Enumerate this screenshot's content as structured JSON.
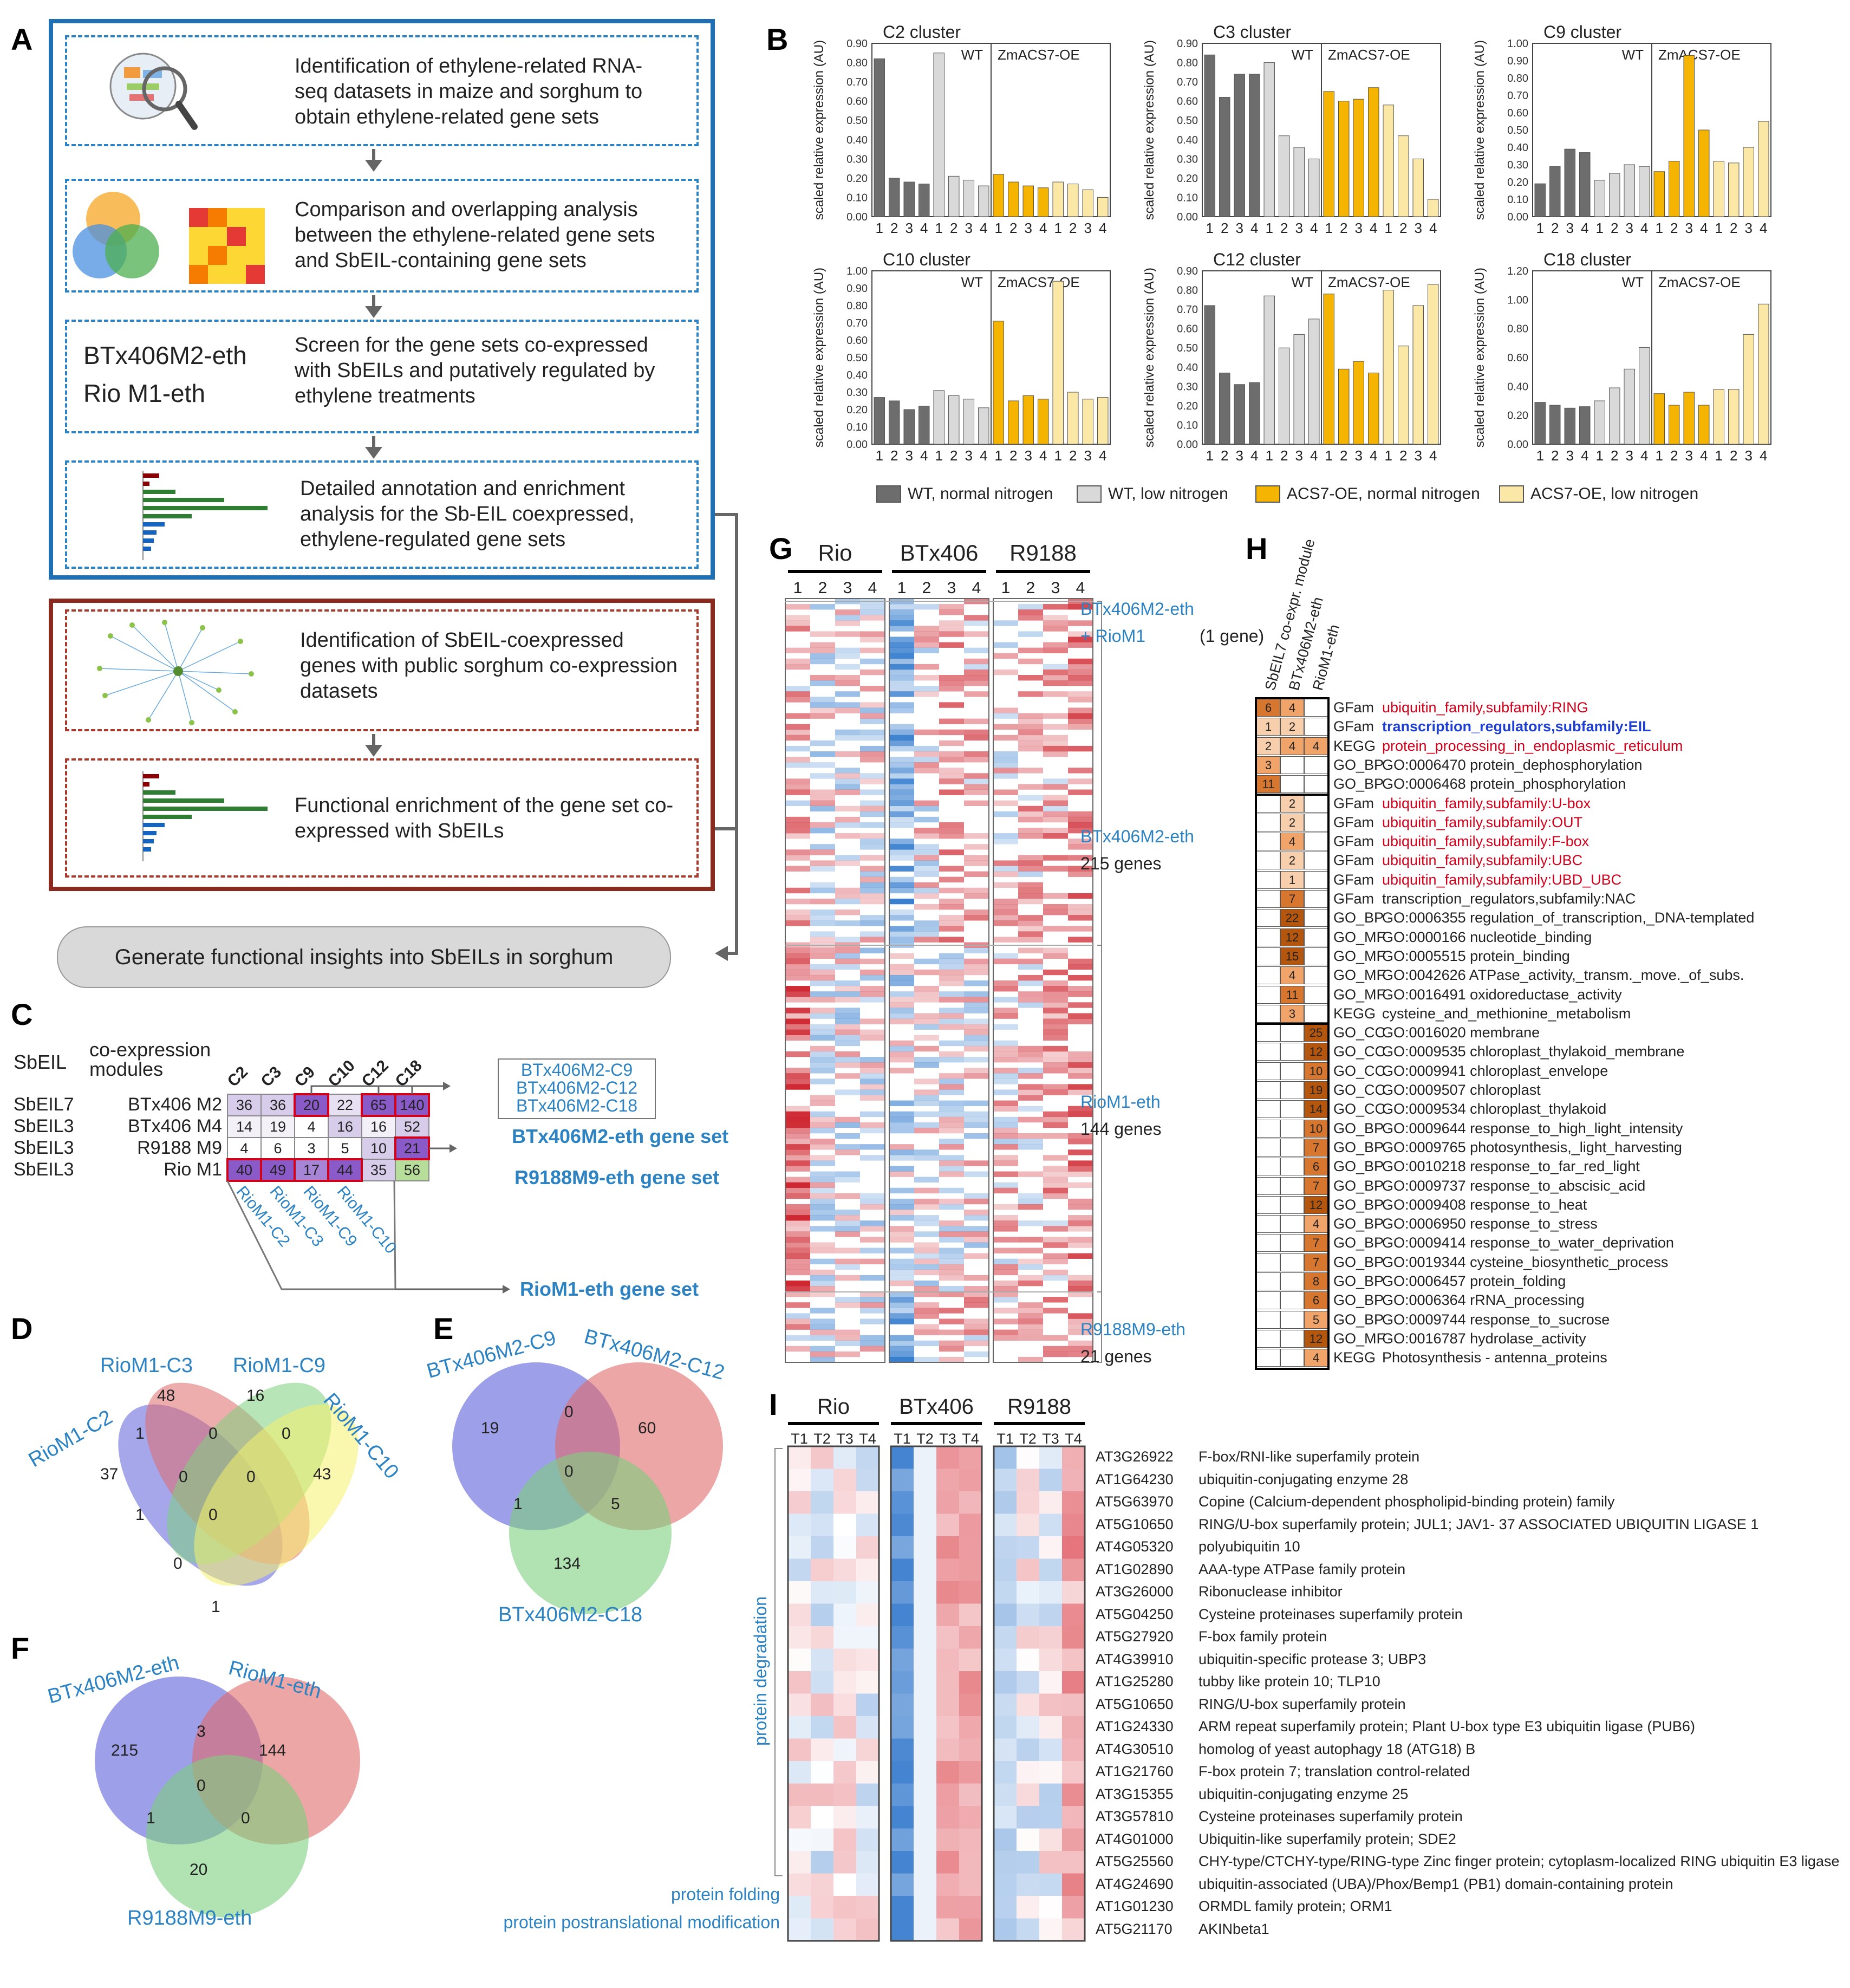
{
  "panel_labels": {
    "a": "A",
    "b": "B",
    "c": "C",
    "d": "D",
    "e": "E",
    "f": "F",
    "g": "G",
    "h": "H",
    "i": "I"
  },
  "panelA": {
    "step1": "Identification of ethylene-related RNA-seq datasets in maize and sorghum to obtain ethylene-related gene sets",
    "step2": "Comparison and overlapping analysis between the ethylene-related gene sets and SbEIL-containing gene sets",
    "step3_left1": "BTx406M2-eth",
    "step3_left2": "Rio M1-eth",
    "step3": "Screen for the gene sets co-expressed with SbEILs and putatively regulated by ethylene treatments",
    "step4": "Detailed annotation and enrichment analysis for the Sb-EIL coexpressed, ethylene-regulated gene sets",
    "step5": "Identification of SbEIL-coexpressed genes with public sorghum co-expression datasets",
    "step6": "Functional enrichment of the gene set co-expressed with SbEILs",
    "final": "Generate functional insights into SbEILs in sorghum"
  },
  "panelB": {
    "ylabel": "scaled relative expression (AU)",
    "wt": "WT",
    "oe": "ZmACS7-OE",
    "xticks": [
      "1",
      "2",
      "3",
      "4",
      "1",
      "2",
      "3",
      "4",
      "1",
      "2",
      "3",
      "4",
      "1",
      "2",
      "3",
      "4"
    ],
    "legend": [
      "WT, normal nitrogen",
      "WT, low nitrogen",
      "ACS7-OE, normal nitrogen",
      "ACS7-OE, low nitrogen"
    ],
    "colors": [
      "#6d6d6d",
      "#d9d9d9",
      "#f5b400",
      "#fbe7a6"
    ]
  },
  "chart_data": [
    {
      "type": "bar",
      "title": "C2 cluster",
      "ylim": [
        0,
        0.9
      ],
      "yticks": [
        "0.00",
        "0.10",
        "0.20",
        "0.30",
        "0.40",
        "0.50",
        "0.60",
        "0.70",
        "0.80",
        "0.90"
      ],
      "values": [
        0.82,
        0.2,
        0.18,
        0.17,
        0.85,
        0.21,
        0.19,
        0.16,
        0.22,
        0.18,
        0.16,
        0.15,
        0.18,
        0.17,
        0.14,
        0.1
      ]
    },
    {
      "type": "bar",
      "title": "C3 cluster",
      "ylim": [
        0,
        0.9
      ],
      "yticks": [
        "0.00",
        "0.10",
        "0.20",
        "0.30",
        "0.40",
        "0.50",
        "0.60",
        "0.70",
        "0.80",
        "0.90"
      ],
      "values": [
        0.84,
        0.62,
        0.74,
        0.74,
        0.8,
        0.42,
        0.36,
        0.3,
        0.65,
        0.6,
        0.61,
        0.67,
        0.58,
        0.42,
        0.3,
        0.09
      ]
    },
    {
      "type": "bar",
      "title": "C9 cluster",
      "ylim": [
        0,
        1.0
      ],
      "yticks": [
        "0.00",
        "0.10",
        "0.20",
        "0.30",
        "0.40",
        "0.50",
        "0.60",
        "0.70",
        "0.80",
        "0.90",
        "1.00"
      ],
      "values": [
        0.19,
        0.29,
        0.39,
        0.37,
        0.21,
        0.25,
        0.3,
        0.29,
        0.26,
        0.32,
        0.93,
        0.5,
        0.32,
        0.31,
        0.4,
        0.55
      ]
    },
    {
      "type": "bar",
      "title": "C10 cluster",
      "ylim": [
        0,
        1.0
      ],
      "yticks": [
        "0.00",
        "0.10",
        "0.20",
        "0.30",
        "0.40",
        "0.50",
        "0.60",
        "0.70",
        "0.80",
        "0.90",
        "1.00"
      ],
      "values": [
        0.27,
        0.25,
        0.2,
        0.22,
        0.31,
        0.28,
        0.26,
        0.21,
        0.71,
        0.25,
        0.28,
        0.26,
        0.94,
        0.3,
        0.26,
        0.27
      ]
    },
    {
      "type": "bar",
      "title": "C12 cluster",
      "ylim": [
        0,
        0.9
      ],
      "yticks": [
        "0.00",
        "0.10",
        "0.20",
        "0.30",
        "0.40",
        "0.50",
        "0.60",
        "0.70",
        "0.80",
        "0.90"
      ],
      "values": [
        0.72,
        0.37,
        0.31,
        0.32,
        0.77,
        0.5,
        0.57,
        0.65,
        0.78,
        0.39,
        0.43,
        0.37,
        0.8,
        0.51,
        0.72,
        0.83
      ]
    },
    {
      "type": "bar",
      "title": "C18 cluster",
      "ylim": [
        0,
        1.2
      ],
      "yticks": [
        "0.00",
        "0.20",
        "0.40",
        "0.60",
        "0.80",
        "1.00",
        "1.20"
      ],
      "values": [
        0.29,
        0.27,
        0.25,
        0.26,
        0.3,
        0.39,
        0.52,
        0.67,
        0.35,
        0.27,
        0.36,
        0.27,
        0.38,
        0.38,
        0.76,
        0.97
      ]
    }
  ],
  "panelC": {
    "sbeil_header": "SbEIL",
    "modules_header": "co-expression modules",
    "cols": [
      "C2",
      "C3",
      "C9",
      "C10",
      "C12",
      "C18"
    ],
    "rows": [
      {
        "sbeil": "SbEIL7",
        "module": "BTx406 M2",
        "values": [
          "36",
          "36",
          "20",
          "22",
          "65",
          "140"
        ]
      },
      {
        "sbeil": "SbEIL3",
        "module": "BTx406 M4",
        "values": [
          "14",
          "19",
          "4",
          "16",
          "16",
          "52"
        ]
      },
      {
        "sbeil": "SbEIL3",
        "module": "R9188 M9",
        "values": [
          "4",
          "6",
          "3",
          "5",
          "10",
          "21"
        ]
      },
      {
        "sbeil": "SbEIL3",
        "module": "Rio M1",
        "values": [
          "40",
          "49",
          "17",
          "44",
          "35",
          "56"
        ]
      }
    ],
    "btx_list": [
      "BTx406M2-C9",
      "BTx406M2-C12",
      "BTx406M2-C18"
    ],
    "set1": "BTx406M2-eth gene set",
    "set2": "R9188M9-eth gene set",
    "set3": "RioM1-eth gene set",
    "rio_labels": [
      "RioM1-C2",
      "RioM1-C3",
      "RioM1-C9",
      "RioM1-C10"
    ]
  },
  "panelD": {
    "labels": [
      "RioM1-C2",
      "RioM1-C3",
      "RioM1-C9",
      "RioM1-C10"
    ],
    "numbers": [
      "48",
      "16",
      "37",
      "43",
      "1",
      "0",
      "0",
      "1",
      "0",
      "0",
      "0",
      "0",
      "1"
    ]
  },
  "panelE": {
    "labels": [
      "BTx406M2-C9",
      "BTx406M2-C12",
      "BTx406M2-C18"
    ],
    "numbers": [
      "19",
      "0",
      "60",
      "0",
      "1",
      "5",
      "134"
    ]
  },
  "panelF": {
    "labels": [
      "BTx406M2-eth",
      "RioM1-eth",
      "R9188M9-eth"
    ],
    "numbers": [
      "215",
      "3",
      "144",
      "0",
      "1",
      "0",
      "20"
    ]
  },
  "panelG": {
    "genotypes": [
      "Rio",
      "BTx406",
      "R9188"
    ],
    "cols": [
      "1",
      "2",
      "3",
      "4",
      "1",
      "2",
      "3",
      "4",
      "1",
      "2",
      "3",
      "4"
    ],
    "sets": [
      {
        "name": "BTx406M2-eth",
        "extra": "+ RioM1",
        "count": "(1 gene)"
      },
      {
        "name": "BTx406M2-eth",
        "count": "215 genes"
      },
      {
        "name": "RioM1-eth",
        "count": "144 genes"
      },
      {
        "name": "R9188M9-eth",
        "count": "21 genes"
      }
    ]
  },
  "panelH": {
    "headers": [
      "SbEIL7 co-expr. module",
      "BTx406M2-eth",
      "RioM1-eth"
    ],
    "rows": [
      {
        "cat": "GFam",
        "term": "ubiquitin_family,subfamily:RING",
        "color": "#d0021b",
        "bold": false,
        "v": [
          "6",
          "4",
          ""
        ]
      },
      {
        "cat": "GFam",
        "term": "transcription_regulators,subfamily:EIL",
        "color": "#1f3fcf",
        "bold": true,
        "v": [
          "1",
          "2",
          ""
        ]
      },
      {
        "cat": "KEGG",
        "term": "protein_processing_in_endoplasmic_reticulum",
        "color": "#d0021b",
        "bold": false,
        "v": [
          "2",
          "4",
          "4"
        ]
      },
      {
        "cat": "GO_BP",
        "term": "GO:0006470 protein_dephosphorylation",
        "color": "#222",
        "bold": false,
        "v": [
          "3",
          "",
          ""
        ]
      },
      {
        "cat": "GO_BP",
        "term": "GO:0006468 protein_phosphorylation",
        "color": "#222",
        "bold": false,
        "v": [
          "11",
          "",
          ""
        ]
      },
      {
        "cat": "GFam",
        "term": "ubiquitin_family,subfamily:U-box",
        "color": "#d0021b",
        "bold": false,
        "v": [
          "",
          "2",
          ""
        ]
      },
      {
        "cat": "GFam",
        "term": "ubiquitin_family,subfamily:OUT",
        "color": "#d0021b",
        "bold": false,
        "v": [
          "",
          "2",
          ""
        ]
      },
      {
        "cat": "GFam",
        "term": "ubiquitin_family,subfamily:F-box",
        "color": "#d0021b",
        "bold": false,
        "v": [
          "",
          "4",
          ""
        ]
      },
      {
        "cat": "GFam",
        "term": "ubiquitin_family,subfamily:UBC",
        "color": "#d0021b",
        "bold": false,
        "v": [
          "",
          "2",
          ""
        ]
      },
      {
        "cat": "GFam",
        "term": "ubiquitin_family,subfamily:UBD_UBC",
        "color": "#d0021b",
        "bold": false,
        "v": [
          "",
          "1",
          ""
        ]
      },
      {
        "cat": "GFam",
        "term": "transcription_regulators,subfamily:NAC",
        "color": "#222",
        "bold": false,
        "v": [
          "",
          "7",
          ""
        ]
      },
      {
        "cat": "GO_BP",
        "term": "GO:0006355 regulation_of_transcription,_DNA-templated",
        "color": "#222",
        "bold": false,
        "v": [
          "",
          "22",
          ""
        ]
      },
      {
        "cat": "GO_MF",
        "term": "GO:0000166 nucleotide_binding",
        "color": "#222",
        "bold": false,
        "v": [
          "",
          "12",
          ""
        ]
      },
      {
        "cat": "GO_MF",
        "term": "GO:0005515 protein_binding",
        "color": "#222",
        "bold": false,
        "v": [
          "",
          "15",
          ""
        ]
      },
      {
        "cat": "GO_MF",
        "term": "GO:0042626 ATPase_activity,_transm._move._of_subs.",
        "color": "#222",
        "bold": false,
        "v": [
          "",
          "4",
          ""
        ]
      },
      {
        "cat": "GO_MF",
        "term": "GO:0016491 oxidoreductase_activity",
        "color": "#222",
        "bold": false,
        "v": [
          "",
          "11",
          ""
        ]
      },
      {
        "cat": "KEGG",
        "term": "cysteine_and_methionine_metabolism",
        "color": "#222",
        "bold": false,
        "v": [
          "",
          "3",
          ""
        ]
      },
      {
        "cat": "GO_CC",
        "term": "GO:0016020 membrane",
        "color": "#222",
        "bold": false,
        "v": [
          "",
          "",
          "25"
        ]
      },
      {
        "cat": "GO_CC",
        "term": "GO:0009535 chloroplast_thylakoid_membrane",
        "color": "#222",
        "bold": false,
        "v": [
          "",
          "",
          "12"
        ]
      },
      {
        "cat": "GO_CC",
        "term": "GO:0009941 chloroplast_envelope",
        "color": "#222",
        "bold": false,
        "v": [
          "",
          "",
          "10"
        ]
      },
      {
        "cat": "GO_CC",
        "term": "GO:0009507 chloroplast",
        "color": "#222",
        "bold": false,
        "v": [
          "",
          "",
          "19"
        ]
      },
      {
        "cat": "GO_CC",
        "term": "GO:0009534 chloroplast_thylakoid",
        "color": "#222",
        "bold": false,
        "v": [
          "",
          "",
          "14"
        ]
      },
      {
        "cat": "GO_BP",
        "term": "GO:0009644 response_to_high_light_intensity",
        "color": "#222",
        "bold": false,
        "v": [
          "",
          "",
          "10"
        ]
      },
      {
        "cat": "GO_BP",
        "term": "GO:0009765 photosynthesis,_light_harvesting",
        "color": "#222",
        "bold": false,
        "v": [
          "",
          "",
          "7"
        ]
      },
      {
        "cat": "GO_BP",
        "term": "GO:0010218 response_to_far_red_light",
        "color": "#222",
        "bold": false,
        "v": [
          "",
          "",
          "6"
        ]
      },
      {
        "cat": "GO_BP",
        "term": "GO:0009737 response_to_abscisic_acid",
        "color": "#222",
        "bold": false,
        "v": [
          "",
          "",
          "7"
        ]
      },
      {
        "cat": "GO_BP",
        "term": "GO:0009408 response_to_heat",
        "color": "#222",
        "bold": false,
        "v": [
          "",
          "",
          "12"
        ]
      },
      {
        "cat": "GO_BP",
        "term": "GO:0006950 response_to_stress",
        "color": "#222",
        "bold": false,
        "v": [
          "",
          "",
          "4"
        ]
      },
      {
        "cat": "GO_BP",
        "term": "GO:0009414 response_to_water_deprivation",
        "color": "#222",
        "bold": false,
        "v": [
          "",
          "",
          "7"
        ]
      },
      {
        "cat": "GO_BP",
        "term": "GO:0019344 cysteine_biosynthetic_process",
        "color": "#222",
        "bold": false,
        "v": [
          "",
          "",
          "7"
        ]
      },
      {
        "cat": "GO_BP",
        "term": "GO:0006457 protein_folding",
        "color": "#222",
        "bold": false,
        "v": [
          "",
          "",
          "8"
        ]
      },
      {
        "cat": "GO_BP",
        "term": "GO:0006364 rRNA_processing",
        "color": "#222",
        "bold": false,
        "v": [
          "",
          "",
          "6"
        ]
      },
      {
        "cat": "GO_BP",
        "term": "GO:0009744 response_to_sucrose",
        "color": "#222",
        "bold": false,
        "v": [
          "",
          "",
          "5"
        ]
      },
      {
        "cat": "GO_MF",
        "term": "GO:0016787 hydrolase_activity",
        "color": "#222",
        "bold": false,
        "v": [
          "",
          "",
          "12"
        ]
      },
      {
        "cat": "KEGG",
        "term": "Photosynthesis - antenna_proteins",
        "color": "#222",
        "bold": false,
        "v": [
          "",
          "",
          "4"
        ]
      }
    ]
  },
  "panelI": {
    "genotypes": [
      "Rio",
      "BTx406",
      "R9188"
    ],
    "cols": [
      "T1",
      "T2",
      "T3",
      "T4",
      "T1",
      "T2",
      "T3",
      "T4",
      "T1",
      "T2",
      "T3",
      "T4"
    ],
    "groups": [
      "protein degradation",
      "protein folding",
      "protein postranslational modification"
    ],
    "genes": [
      {
        "id": "AT3G26922",
        "desc": "F-box/RNI-like superfamily protein"
      },
      {
        "id": "AT1G64230",
        "desc": "ubiquitin-conjugating enzyme 28"
      },
      {
        "id": "AT5G63970",
        "desc": "Copine (Calcium-dependent phospholipid-binding protein) family"
      },
      {
        "id": "AT5G10650",
        "desc": "RING/U-box superfamily protein; JUL1; JAV1- 37 ASSOCIATED UBIQUITIN LIGASE 1"
      },
      {
        "id": "AT4G05320",
        "desc": "polyubiquitin 10"
      },
      {
        "id": "AT1G02890",
        "desc": "AAA-type ATPase family protein"
      },
      {
        "id": "AT3G26000",
        "desc": "Ribonuclease inhibitor"
      },
      {
        "id": "AT5G04250",
        "desc": "Cysteine proteinases superfamily protein"
      },
      {
        "id": "AT5G27920",
        "desc": "F-box family protein"
      },
      {
        "id": "AT4G39910",
        "desc": "ubiquitin-specific protease 3; UBP3"
      },
      {
        "id": "AT1G25280",
        "desc": "tubby like protein 10; TLP10"
      },
      {
        "id": "AT5G10650",
        "desc": "RING/U-box superfamily protein"
      },
      {
        "id": "AT1G24330",
        "desc": "ARM repeat superfamily protein; Plant U-box type E3 ubiquitin ligase (PUB6)"
      },
      {
        "id": "AT4G30510",
        "desc": "homolog of yeast autophagy 18 (ATG18) B"
      },
      {
        "id": "AT1G21760",
        "desc": "F-box protein 7; translation control-related"
      },
      {
        "id": "AT3G15355",
        "desc": "ubiquitin-conjugating enzyme 25"
      },
      {
        "id": "AT3G57810",
        "desc": "Cysteine proteinases superfamily protein"
      },
      {
        "id": "AT4G01000",
        "desc": "Ubiquitin-like superfamily protein; SDE2"
      },
      {
        "id": "AT5G25560",
        "desc": "CHY-type/CTCHY-type/RING-type Zinc finger protein; cytoplasm-localized RING ubiquitin E3 ligase"
      },
      {
        "id": "AT4G24690",
        "desc": "ubiquitin-associated (UBA)/Phox/Bemp1 (PB1) domain-containing protein"
      },
      {
        "id": "AT1G01230",
        "desc": "ORMDL family protein; ORM1"
      },
      {
        "id": "AT5G21170",
        "desc": "AKINbeta1"
      }
    ]
  }
}
